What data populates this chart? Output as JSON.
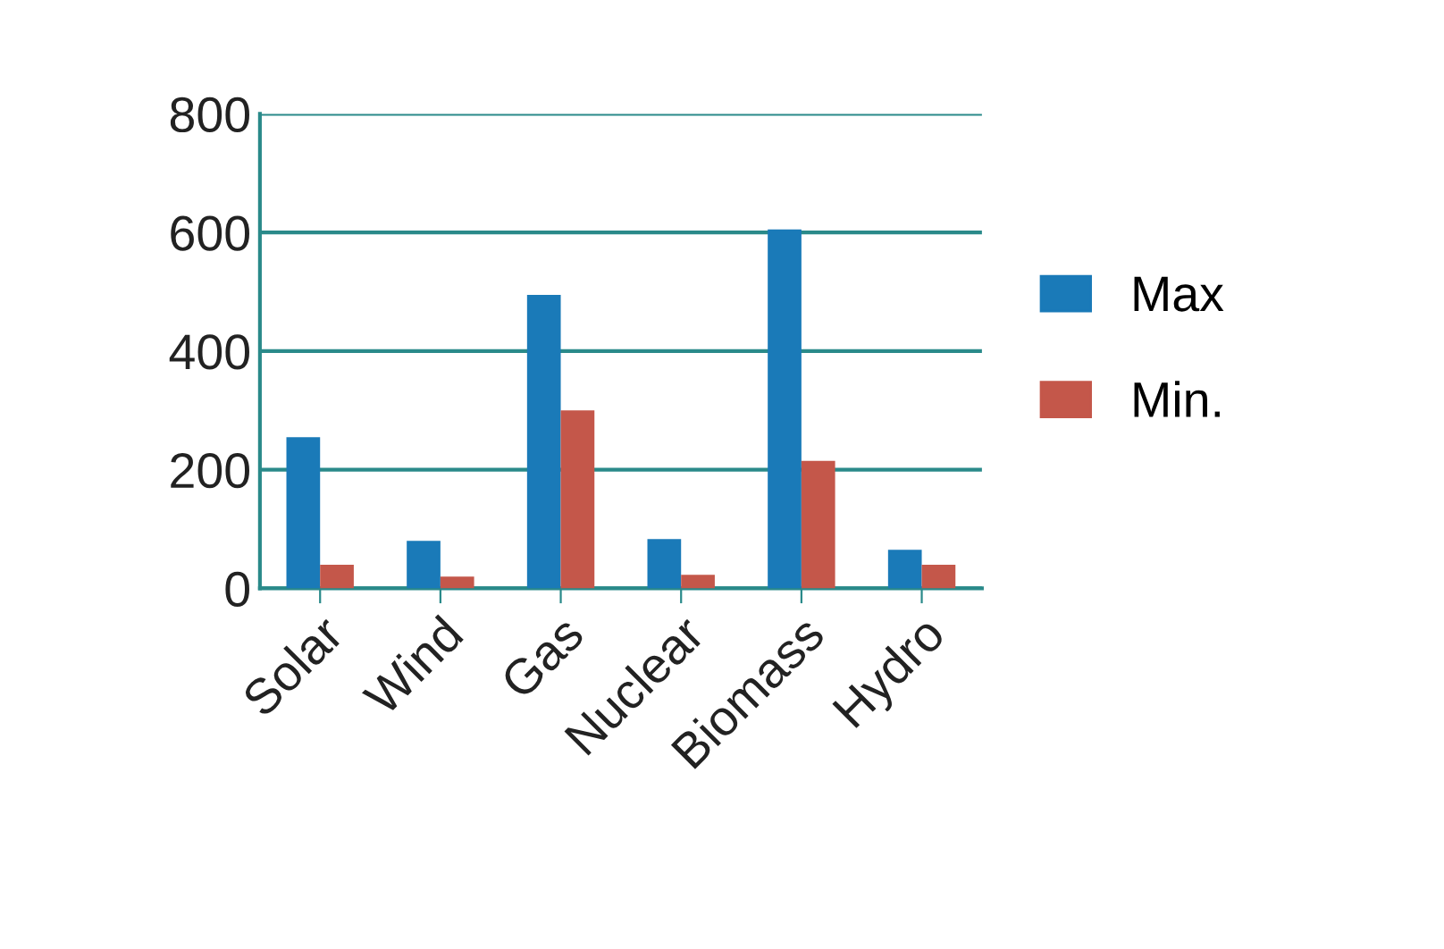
{
  "chart_data": {
    "type": "bar",
    "categories": [
      "Solar",
      "Wind",
      "Gas",
      "Nuclear",
      "Biomass",
      "Hydro"
    ],
    "series": [
      {
        "name": "Max",
        "color": "#1a7ab8",
        "values": [
          255,
          80,
          495,
          83,
          605,
          65
        ]
      },
      {
        "name": "Min.",
        "color": "#c4574a",
        "values": [
          40,
          20,
          300,
          23,
          215,
          40
        ]
      }
    ],
    "ylim": [
      0,
      800
    ],
    "yticks": [
      0,
      200,
      400,
      600,
      800
    ],
    "grid": "y",
    "legend": "right"
  }
}
